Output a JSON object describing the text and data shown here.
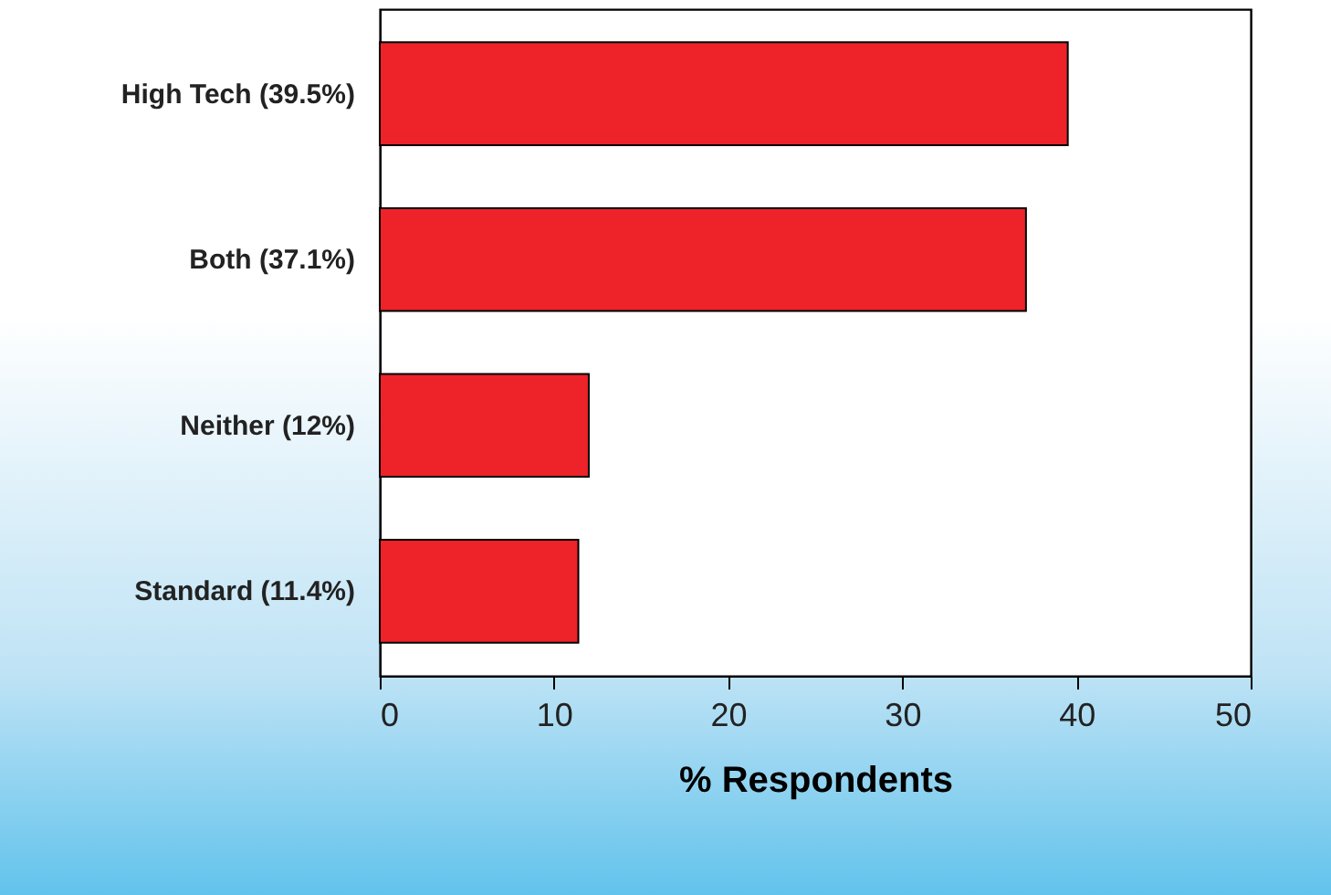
{
  "chart_data": {
    "type": "bar",
    "orientation": "horizontal",
    "xlabel": "% Respondents",
    "categories": [
      "High Tech (39.5%)",
      "Both (37.1%)",
      "Neither (12%)",
      "Standard (11.4%)"
    ],
    "values": [
      39.5,
      37.1,
      12,
      11.4
    ],
    "color": "#ee2229",
    "xlim": [
      0,
      50
    ],
    "xticks": [
      0,
      10,
      20,
      30,
      40,
      50
    ],
    "grid": false
  }
}
